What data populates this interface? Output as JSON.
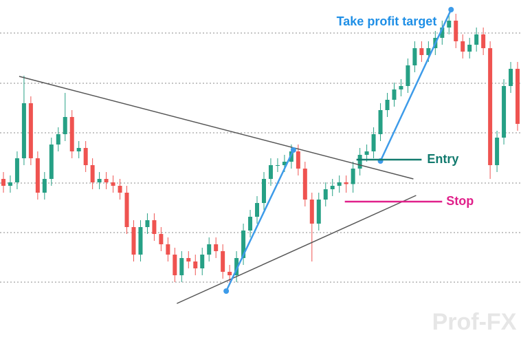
{
  "chart_data": {
    "type": "candlestick",
    "xlim": [
      -0.5,
      75.5
    ],
    "ylim": [
      0,
      100
    ],
    "up_color": "#26a085",
    "down_color": "#ef5350",
    "gridlines": [
      90.4,
      75.8,
      61.4,
      46.8,
      32.4,
      18
    ],
    "open": [
      48,
      46,
      47,
      54,
      70,
      54,
      44,
      48,
      58,
      61,
      66,
      56,
      57,
      52,
      47,
      48,
      47,
      46,
      44,
      34,
      26,
      34,
      36,
      32,
      29,
      26,
      20,
      25,
      24,
      22,
      26,
      29,
      27,
      21,
      20,
      25,
      33,
      37,
      41,
      48,
      52,
      52,
      53,
      56,
      51,
      42,
      35,
      42,
      45,
      46,
      47,
      46.5,
      51,
      55,
      56,
      61,
      68,
      71,
      74,
      75,
      81,
      86,
      84,
      86,
      89,
      92,
      94,
      88,
      85,
      87,
      90,
      86,
      52,
      60,
      75,
      80
    ],
    "high": [
      50,
      49,
      56,
      78,
      72,
      56,
      50,
      60,
      63,
      73,
      68,
      59,
      59,
      54,
      50,
      50,
      49,
      48,
      46,
      36,
      36,
      38,
      38,
      34,
      31,
      28,
      27,
      27,
      26,
      28,
      31,
      31,
      29,
      23,
      27,
      35,
      39,
      43,
      50,
      54,
      54,
      55,
      58,
      58,
      53,
      44,
      44,
      47,
      48,
      49,
      49,
      53,
      57,
      58,
      63,
      70,
      73,
      76,
      77,
      83,
      88,
      88,
      88,
      91,
      94,
      96,
      96,
      90,
      89,
      92,
      92,
      88,
      62,
      77,
      82,
      82
    ],
    "low": [
      44,
      44,
      45,
      52,
      52,
      42,
      42,
      46,
      56,
      59,
      54,
      54,
      50,
      45,
      45,
      45,
      44,
      42,
      32,
      24,
      24,
      32,
      30,
      27,
      24,
      18,
      18,
      22,
      20,
      20,
      24,
      25,
      19,
      18,
      18,
      23,
      31,
      35,
      39,
      46,
      50,
      50,
      51,
      49,
      40,
      24,
      33,
      40,
      43,
      44,
      44,
      44,
      49,
      53,
      54,
      59,
      66,
      69,
      72,
      73,
      79,
      82,
      82,
      84,
      87,
      90,
      86,
      83,
      83,
      85,
      84,
      48,
      50,
      58,
      73,
      62
    ],
    "close": [
      46,
      47,
      54,
      70,
      54,
      44,
      48,
      58,
      61,
      66,
      56,
      57,
      52,
      47,
      48,
      47,
      46,
      44,
      34,
      26,
      34,
      36,
      32,
      29,
      26,
      20,
      25,
      24,
      22,
      26,
      29,
      27,
      21,
      20,
      25,
      33,
      37,
      41,
      48,
      52,
      52,
      53,
      56,
      51,
      42,
      35,
      42,
      45,
      46,
      47,
      46.5,
      51,
      55,
      56,
      61,
      68,
      71,
      74,
      75,
      81,
      86,
      84,
      86,
      89,
      92,
      94,
      88,
      85,
      87,
      90,
      86,
      52,
      60,
      75,
      80,
      64
    ],
    "lines": [
      {
        "x": [
          2.3,
          59.8
        ],
        "y": [
          77.8,
          48
        ],
        "color": "#555555"
      },
      {
        "x": [
          25.3,
          60.2
        ],
        "y": [
          11.8,
          43.2
        ],
        "color": "#555555"
      },
      {
        "x": [
          32.5,
          42.3
        ],
        "y": [
          15.4,
          56.4
        ],
        "color": "#3d9be9"
      },
      {
        "x": [
          55,
          65.3
        ],
        "y": [
          53.2,
          97.2
        ],
        "color": "#3d9be9"
      },
      {
        "x": [
          51.5,
          61
        ],
        "y": [
          53.6,
          53.6
        ],
        "color": "#127a6e"
      },
      {
        "x": [
          49.8,
          64
        ],
        "y": [
          41.4,
          41.4
        ],
        "color": "#e0208a"
      }
    ],
    "annotations": [
      {
        "text": "Take profit target",
        "x": 63.2,
        "y": 93.6,
        "color": "#1f8fe6"
      },
      {
        "text": "Entry",
        "x": 61.8,
        "y": 53.6,
        "color": "#127a6e"
      },
      {
        "text": "Stop",
        "x": 64.6,
        "y": 41.4,
        "color": "#e0208a"
      }
    ],
    "watermark": "Prof-FX"
  }
}
